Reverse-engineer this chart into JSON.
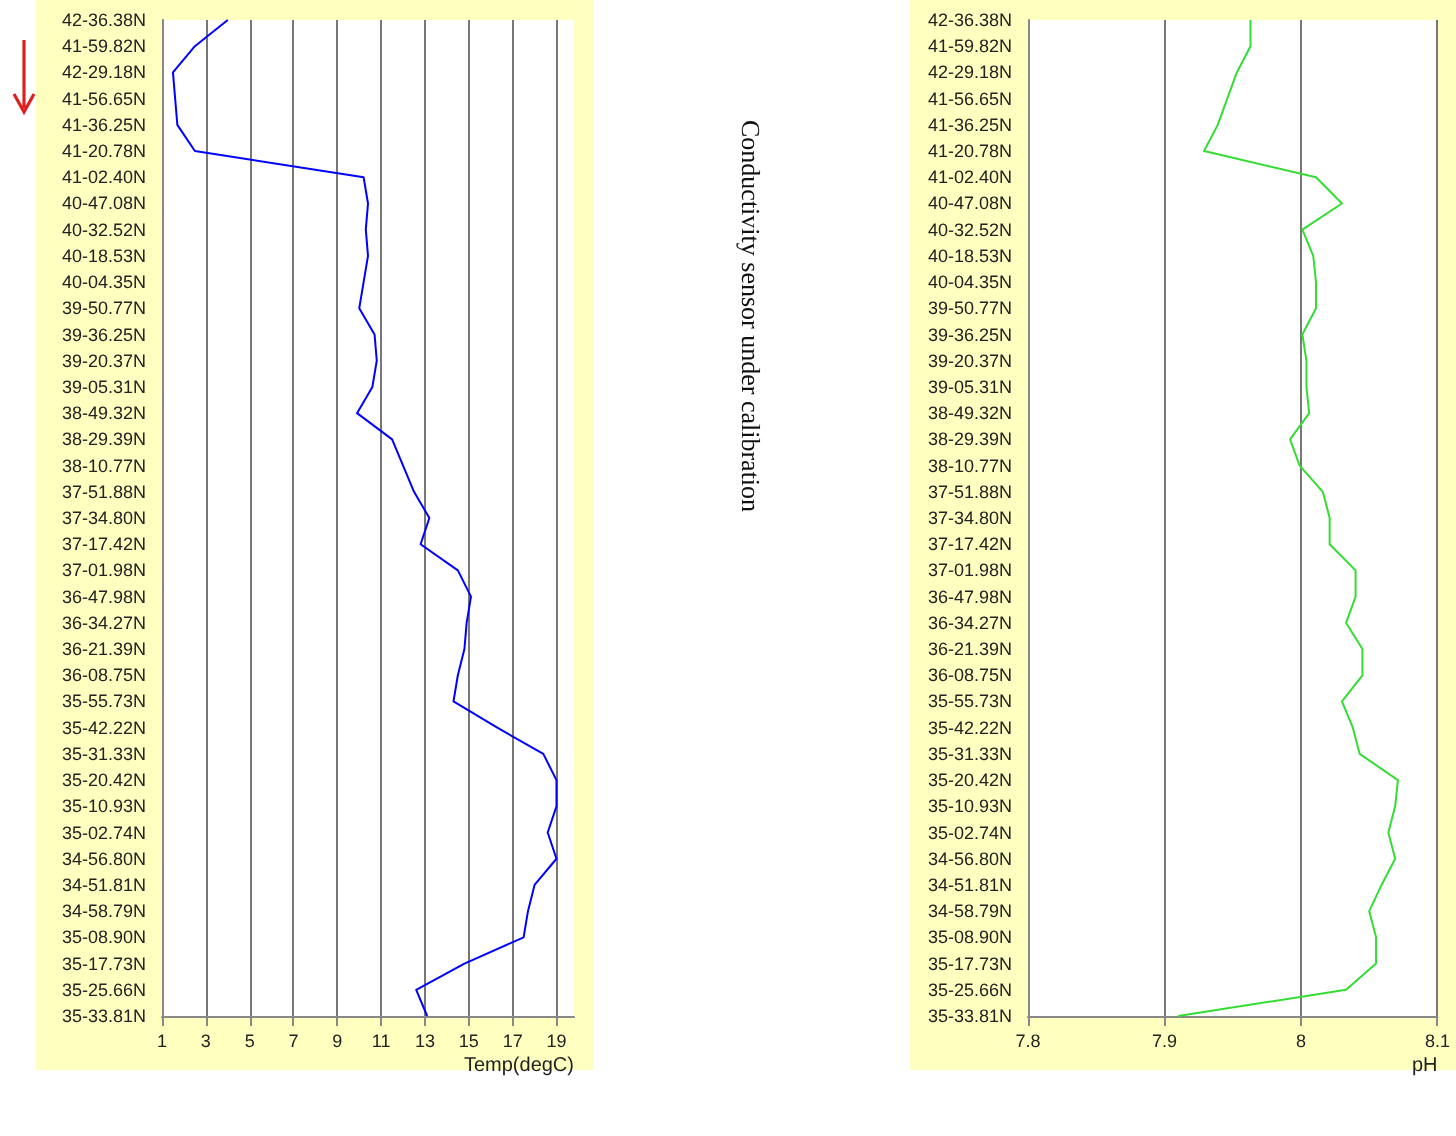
{
  "chart_data": [
    {
      "type": "line",
      "orientation": "horizontal",
      "xlabel": "Temp(degC)",
      "annotations": [
        "Conductivity sensor under calibration"
      ],
      "categories": [
        "42-36.38N",
        "41-59.82N",
        "42-29.18N",
        "41-56.65N",
        "41-36.25N",
        "41-20.78N",
        "41-02.40N",
        "40-47.08N",
        "40-32.52N",
        "40-18.53N",
        "40-04.35N",
        "39-50.77N",
        "39-36.25N",
        "39-20.37N",
        "39-05.31N",
        "38-49.32N",
        "38-29.39N",
        "38-10.77N",
        "37-51.88N",
        "37-34.80N",
        "37-17.42N",
        "37-01.98N",
        "36-47.98N",
        "36-34.27N",
        "36-21.39N",
        "36-08.75N",
        "35-55.73N",
        "35-42.22N",
        "35-31.33N",
        "35-20.42N",
        "35-10.93N",
        "35-02.74N",
        "34-56.80N",
        "34-51.81N",
        "34-58.79N",
        "35-08.90N",
        "35-17.73N",
        "35-25.66N",
        "35-33.81N"
      ],
      "series": [
        {
          "color": "#0000ff",
          "values": [
            4,
            2.5,
            1.5,
            1.6,
            1.7,
            2.5,
            10.2,
            10.4,
            10.3,
            10.4,
            10.2,
            10,
            10.7,
            10.8,
            10.6,
            9.9,
            11.5,
            12,
            12.5,
            13.2,
            12.8,
            14.5,
            15.1,
            14.9,
            14.8,
            14.5,
            14.3,
            16.3,
            18.4,
            19,
            19,
            18.6,
            19,
            18,
            17.7,
            17.5,
            14.8,
            12.6,
            13.1
          ]
        }
      ],
      "xlim": [
        1,
        19.8
      ],
      "xticks": [
        1,
        3,
        5,
        7,
        9,
        11,
        13,
        15,
        17,
        19
      ],
      "grid": "x",
      "marker": "none"
    },
    {
      "type": "line",
      "orientation": "horizontal",
      "xlabel": "pH",
      "categories": [
        "42-36.38N",
        "41-59.82N",
        "42-29.18N",
        "41-56.65N",
        "41-36.25N",
        "41-20.78N",
        "41-02.40N",
        "40-47.08N",
        "40-32.52N",
        "40-18.53N",
        "40-04.35N",
        "39-50.77N",
        "39-36.25N",
        "39-20.37N",
        "39-05.31N",
        "38-49.32N",
        "38-29.39N",
        "38-10.77N",
        "37-51.88N",
        "37-34.80N",
        "37-17.42N",
        "37-01.98N",
        "36-47.98N",
        "36-34.27N",
        "36-21.39N",
        "36-08.75N",
        "35-55.73N",
        "35-42.22N",
        "35-31.33N",
        "35-20.42N",
        "35-10.93N",
        "35-02.74N",
        "34-56.80N",
        "34-51.81N",
        "34-58.79N",
        "35-08.90N",
        "35-17.73N",
        "35-25.66N",
        "35-33.81N"
      ],
      "series": [
        {
          "color": "#33dd33",
          "values": [
            7.963,
            7.963,
            7.953,
            7.946,
            7.939,
            7.929,
            8.011,
            8.03,
            8.001,
            8.009,
            8.011,
            8.011,
            8.001,
            8.004,
            8.004,
            8.006,
            7.992,
            7.999,
            8.016,
            8.021,
            8.021,
            8.04,
            8.04,
            8.033,
            8.045,
            8.045,
            8.03,
            8.038,
            8.043,
            8.071,
            8.069,
            8.064,
            8.069,
            8.059,
            8.05,
            8.055,
            8.055,
            8.033,
            7.91
          ]
        }
      ],
      "xlim": [
        7.8,
        8.1
      ],
      "xticks": [
        7.8,
        7.9,
        8,
        8.1
      ],
      "grid": "x",
      "marker": "none"
    }
  ]
}
